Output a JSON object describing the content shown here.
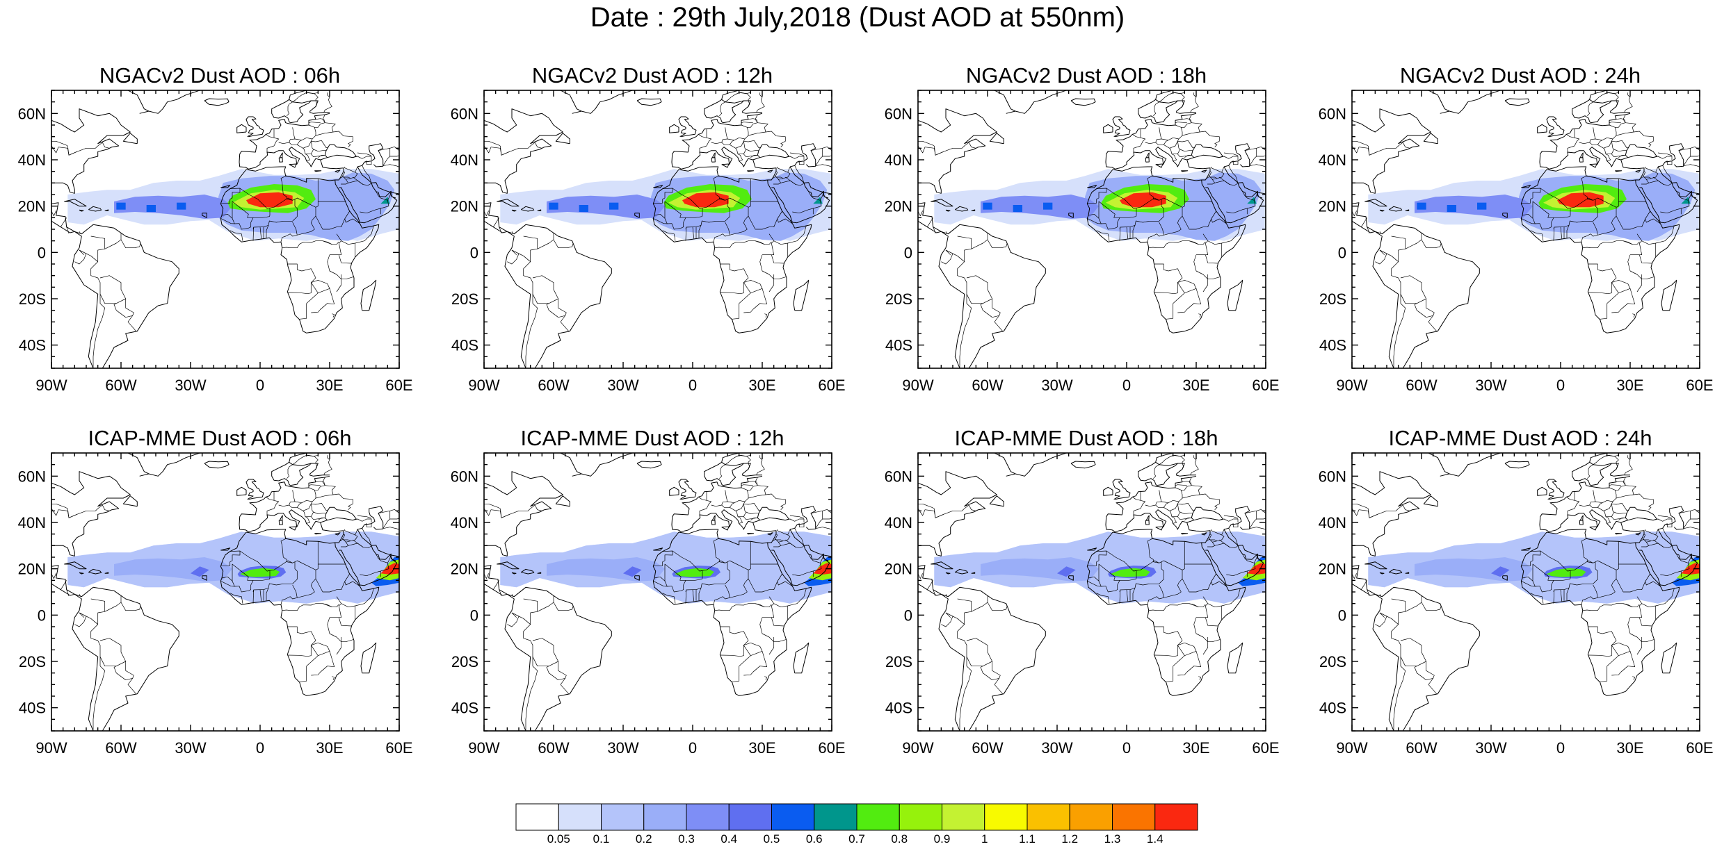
{
  "figure": {
    "title": "Date : 29th July,2018 (Dust AOD at 550nm)"
  },
  "axes": {
    "lon_ticks": [
      "90W",
      "60W",
      "30W",
      "0",
      "30E",
      "60E"
    ],
    "lat_ticks": [
      "60N",
      "40N",
      "20N",
      "0",
      "20S",
      "40S"
    ],
    "lon_range": [
      -90,
      60
    ],
    "lat_range": [
      -50,
      70
    ]
  },
  "panels": [
    {
      "title": "NGACv2 Dust AOD : 06h",
      "model": "NGACv2",
      "hour": 6
    },
    {
      "title": "NGACv2 Dust AOD : 12h",
      "model": "NGACv2",
      "hour": 12
    },
    {
      "title": "NGACv2 Dust AOD : 18h",
      "model": "NGACv2",
      "hour": 18
    },
    {
      "title": "NGACv2 Dust AOD : 24h",
      "model": "NGACv2",
      "hour": 24
    },
    {
      "title": "ICAP-MME Dust AOD : 06h",
      "model": "ICAP-MME",
      "hour": 6
    },
    {
      "title": "ICAP-MME Dust AOD : 12h",
      "model": "ICAP-MME",
      "hour": 12
    },
    {
      "title": "ICAP-MME Dust AOD : 18h",
      "model": "ICAP-MME",
      "hour": 18
    },
    {
      "title": "ICAP-MME Dust AOD : 24h",
      "model": "ICAP-MME",
      "hour": 24
    }
  ],
  "colorbar": {
    "labels": [
      "0.05",
      "0.1",
      "0.2",
      "0.3",
      "0.4",
      "0.5",
      "0.6",
      "0.7",
      "0.8",
      "0.9",
      "1",
      "1.1",
      "1.2",
      "1.3",
      "1.4"
    ],
    "colors": [
      "#ffffff",
      "#d6e0fb",
      "#b4c4fa",
      "#9aaef8",
      "#7e8ef6",
      "#5f6ff0",
      "#0a5cf0",
      "#00968c",
      "#52ec10",
      "#96f20c",
      "#c4f232",
      "#f8fa00",
      "#fac000",
      "#faa000",
      "#fa7400",
      "#fa2810"
    ]
  }
}
